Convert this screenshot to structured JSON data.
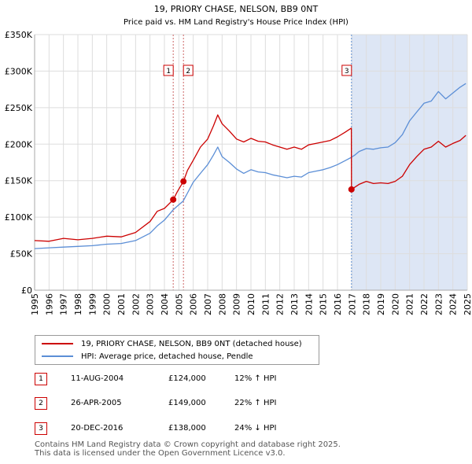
{
  "chart_data": {
    "type": "line",
    "title": "19, PRIORY CHASE, NELSON, BB9 0NT",
    "subtitle": "Price paid vs. HM Land Registry's House Price Index (HPI)",
    "xlabel": "",
    "ylabel": "",
    "xlim": [
      1995,
      2025
    ],
    "ylim": [
      0,
      350000
    ],
    "y_ticks": [
      0,
      50000,
      100000,
      150000,
      200000,
      250000,
      300000,
      350000
    ],
    "y_tick_labels": [
      "£0",
      "£50K",
      "£100K",
      "£150K",
      "£200K",
      "£250K",
      "£300K",
      "£350K"
    ],
    "x_ticks": [
      1995,
      1996,
      1997,
      1998,
      1999,
      2000,
      2001,
      2002,
      2003,
      2004,
      2005,
      2006,
      2007,
      2008,
      2009,
      2010,
      2011,
      2012,
      2013,
      2014,
      2015,
      2016,
      2017,
      2018,
      2019,
      2020,
      2021,
      2022,
      2023,
      2024,
      2025
    ],
    "grid": true,
    "shaded_region": {
      "from": 2016.97,
      "to": 2025,
      "color": "#dde6f5"
    },
    "colors": {
      "property": "#cc0000",
      "hpi": "#5b8ed6"
    },
    "series": [
      {
        "name": "19, PRIORY CHASE, NELSON, BB9 0NT (detached house)",
        "color": "#cc0000",
        "x": [
          1995,
          1996,
          1997,
          1998,
          1999,
          2000,
          2001,
          2002,
          2003,
          2003.5,
          2004,
          2004.61,
          2004.9,
          2005.32,
          2005.6,
          2006,
          2006.5,
          2007,
          2007.4,
          2007.7,
          2008,
          2008.5,
          2009,
          2009.5,
          2010,
          2010.5,
          2011,
          2011.5,
          2012,
          2012.5,
          2013,
          2013.5,
          2014,
          2014.5,
          2015,
          2015.5,
          2016,
          2016.5,
          2016.96,
          2016.97,
          2017.2,
          2017.5,
          2018,
          2018.5,
          2019,
          2019.5,
          2020,
          2020.5,
          2021,
          2021.5,
          2022,
          2022.5,
          2023,
          2023.5,
          2024,
          2024.5,
          2024.9
        ],
        "y": [
          68000,
          67000,
          71000,
          69000,
          71000,
          74000,
          73000,
          79000,
          94000,
          108000,
          112000,
          124000,
          135000,
          149000,
          164000,
          178000,
          196000,
          207000,
          225000,
          240000,
          228000,
          218000,
          207000,
          203000,
          208000,
          204000,
          203000,
          199000,
          196000,
          193000,
          196000,
          193000,
          199000,
          201000,
          203000,
          205000,
          210000,
          216000,
          222000,
          138000,
          141000,
          145000,
          149000,
          146000,
          147000,
          146000,
          149000,
          156000,
          172000,
          183000,
          193000,
          196000,
          204000,
          196000,
          201000,
          205000,
          212000
        ]
      },
      {
        "name": "HPI: Average price, detached house, Pendle",
        "color": "#5b8ed6",
        "x": [
          1995,
          1996,
          1997,
          1998,
          1999,
          2000,
          2001,
          2002,
          2003,
          2003.5,
          2004,
          2004.6,
          2005,
          2005.3,
          2005.6,
          2006,
          2006.5,
          2007,
          2007.4,
          2007.7,
          2008,
          2008.5,
          2009,
          2009.5,
          2010,
          2010.5,
          2011,
          2011.5,
          2012,
          2012.5,
          2013,
          2013.5,
          2014,
          2014.5,
          2015,
          2015.5,
          2016,
          2016.5,
          2016.97,
          2017.2,
          2017.5,
          2018,
          2018.5,
          2019,
          2019.5,
          2020,
          2020.5,
          2021,
          2021.5,
          2022,
          2022.5,
          2023,
          2023.5,
          2024,
          2024.5,
          2024.9
        ],
        "y": [
          57000,
          58000,
          59000,
          60000,
          61000,
          63000,
          64000,
          68000,
          78000,
          88000,
          96000,
          110000,
          117000,
          122000,
          133000,
          148000,
          160000,
          172000,
          185000,
          196000,
          183000,
          175000,
          166000,
          160000,
          165000,
          162000,
          161000,
          158000,
          156000,
          154000,
          156000,
          155000,
          161000,
          163000,
          165000,
          168000,
          172000,
          177000,
          182000,
          185000,
          190000,
          194000,
          193000,
          195000,
          196000,
          202000,
          213000,
          232000,
          244000,
          256000,
          259000,
          272000,
          262000,
          270000,
          278000,
          283000
        ]
      }
    ],
    "markers": [
      {
        "label": "1",
        "x": 2004.61,
        "y": 124000
      },
      {
        "label": "2",
        "x": 2005.32,
        "y": 149000
      },
      {
        "label": "3",
        "x": 2016.97,
        "y": 138000
      }
    ]
  },
  "legend": {
    "property_label": "19, PRIORY CHASE, NELSON, BB9 0NT (detached house)",
    "hpi_label": "HPI: Average price, detached house, Pendle"
  },
  "transactions": [
    {
      "num": "1",
      "date": "11-AUG-2004",
      "price": "£124,000",
      "hpi": "12% ↑ HPI"
    },
    {
      "num": "2",
      "date": "26-APR-2005",
      "price": "£149,000",
      "hpi": "22% ↑ HPI"
    },
    {
      "num": "3",
      "date": "20-DEC-2016",
      "price": "£138,000",
      "hpi": "24% ↓ HPI"
    }
  ],
  "footer": {
    "line1": "Contains HM Land Registry data © Crown copyright and database right 2025.",
    "line2": "This data is licensed under the Open Government Licence v3.0."
  }
}
